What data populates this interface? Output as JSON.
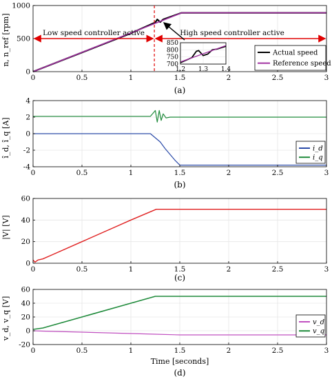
{
  "figure": {
    "panel_labels": [
      "(a)",
      "(b)",
      "(c)",
      "(d)"
    ],
    "xlabel": "Time [seconds]"
  },
  "colors": {
    "actual_speed": "#000000",
    "reference_speed": "#a030a0",
    "id": "#2a4aa8",
    "iq": "#1e8a3a",
    "voltage": "#e02020",
    "vd": "#c050c0",
    "vq": "#1e8a3a",
    "annotation": "#e00000",
    "grid": "#e6e6e6"
  },
  "chart_data": [
    {
      "type": "line",
      "panel": "(a)",
      "ylabel": "n, n_ref [rpm]",
      "xlim": [
        0,
        3
      ],
      "ylim": [
        0,
        1000
      ],
      "xticks": [
        0,
        0.5,
        1,
        1.5,
        2,
        2.5,
        3
      ],
      "yticks": [
        0,
        500,
        1000
      ],
      "grid": true,
      "legend_position": "bottom-right",
      "series": [
        {
          "name": "Actual speed",
          "x": [
            0,
            0.5,
            1.0,
            1.22,
            1.25,
            1.27,
            1.3,
            1.33,
            1.5,
            1.52,
            3.0
          ],
          "y": [
            0,
            290,
            580,
            725,
            745,
            790,
            750,
            790,
            880,
            890,
            890
          ]
        },
        {
          "name": "Reference speed",
          "x": [
            0,
            1.52,
            3.0
          ],
          "y": [
            0,
            890,
            890
          ]
        }
      ],
      "annotations": [
        {
          "text": "Low speed controller active",
          "x_range": [
            0,
            1.24
          ],
          "y": 500
        },
        {
          "text": "High speed controller active",
          "x_range": [
            1.24,
            3.0
          ],
          "y": 500
        },
        {
          "type": "vertical-dashed-line",
          "x": 1.24
        }
      ],
      "inset": {
        "xlim": [
          1.2,
          1.4
        ],
        "ylim": [
          700,
          850
        ],
        "xticks": [
          1.2,
          1.3,
          1.4
        ],
        "yticks": [
          700,
          750,
          800,
          850
        ],
        "series": [
          {
            "name": "Actual speed",
            "x": [
              1.2,
              1.25,
              1.27,
              1.28,
              1.3,
              1.32,
              1.34,
              1.36,
              1.4
            ],
            "y": [
              710,
              745,
              790,
              795,
              760,
              770,
              800,
              805,
              825
            ]
          },
          {
            "name": "Reference speed",
            "x": [
              1.2,
              1.4
            ],
            "y": [
              715,
              830
            ]
          }
        ]
      }
    },
    {
      "type": "line",
      "panel": "(b)",
      "ylabel": "î_d, î_q [A]",
      "xlim": [
        0,
        3
      ],
      "ylim": [
        -4,
        4
      ],
      "xticks": [
        0,
        0.5,
        1,
        1.5,
        2,
        2.5,
        3
      ],
      "yticks": [
        -4,
        -2,
        0,
        2,
        4
      ],
      "grid": true,
      "legend_position": "right",
      "series": [
        {
          "name": "i_d",
          "x": [
            0,
            1.2,
            1.25,
            1.3,
            1.35,
            1.4,
            1.45,
            1.5,
            1.55,
            3.0
          ],
          "y": [
            0,
            0,
            -0.5,
            -1.0,
            -1.8,
            -2.5,
            -3.2,
            -3.8,
            -3.8,
            -3.8
          ]
        },
        {
          "name": "i_q",
          "x": [
            0,
            1.2,
            1.25,
            1.27,
            1.29,
            1.31,
            1.33,
            1.36,
            1.4,
            3.0
          ],
          "y": [
            2.1,
            2.1,
            2.8,
            1.4,
            2.8,
            1.6,
            2.4,
            1.9,
            2.0,
            2.0
          ]
        }
      ]
    },
    {
      "type": "line",
      "panel": "(c)",
      "ylabel": "|V| [V]",
      "xlim": [
        0,
        3
      ],
      "ylim": [
        0,
        60
      ],
      "xticks": [
        0,
        0.5,
        1,
        1.5,
        2,
        2.5,
        3
      ],
      "yticks": [
        0,
        20,
        40,
        60
      ],
      "grid": true,
      "series": [
        {
          "name": "|V|",
          "x": [
            0,
            0.02,
            0.05,
            0.1,
            0.2,
            0.5,
            0.8,
            1.0,
            1.26,
            3.0
          ],
          "y": [
            3,
            1,
            3,
            4,
            8,
            20,
            32,
            40,
            50,
            50
          ]
        }
      ]
    },
    {
      "type": "line",
      "panel": "(d)",
      "ylabel": "v_d, v_q [V]",
      "xlim": [
        0,
        3
      ],
      "ylim": [
        -20,
        60
      ],
      "xticks": [
        0,
        0.5,
        1,
        1.5,
        2,
        2.5,
        3
      ],
      "yticks": [
        -20,
        0,
        20,
        40,
        60
      ],
      "grid": true,
      "legend_position": "right",
      "series": [
        {
          "name": "v_d",
          "x": [
            0,
            0.1,
            0.5,
            1.0,
            1.25,
            1.5,
            3.0
          ],
          "y": [
            0,
            -0.5,
            -2,
            -4,
            -5,
            -6,
            -6
          ]
        },
        {
          "name": "v_q",
          "x": [
            0,
            0.1,
            0.5,
            1.0,
            1.25,
            3.0
          ],
          "y": [
            2,
            4,
            20,
            40,
            50,
            50
          ]
        }
      ]
    }
  ]
}
